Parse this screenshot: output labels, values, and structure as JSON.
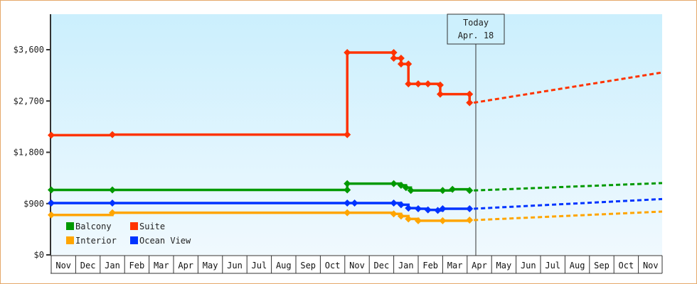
{
  "chart_data": {
    "type": "line",
    "title": "",
    "xlabel": "",
    "ylabel": "",
    "ylim": [
      0,
      4300
    ],
    "y_ticks": [
      {
        "label": "$0",
        "value": 0
      },
      {
        "label": "$900",
        "value": 900
      },
      {
        "label": "$1,800",
        "value": 1800
      },
      {
        "label": "$2,700",
        "value": 2700
      },
      {
        "label": "$3,600",
        "value": 3600
      }
    ],
    "x_tick_labels": [
      "Nov",
      "Dec",
      "Jan",
      "Feb",
      "Mar",
      "Apr",
      "May",
      "Jun",
      "Jul",
      "Aug",
      "Sep",
      "Oct",
      "Nov",
      "Dec",
      "Jan",
      "Feb",
      "Mar",
      "Apr",
      "May",
      "Jun",
      "Jul",
      "Aug",
      "Sep",
      "Oct",
      "Nov"
    ],
    "grid": false,
    "legend_position": "lower-left inside",
    "today_marker": {
      "line1": "Today",
      "line2": "Apr. 18",
      "month_index": 17.1
    },
    "series": [
      {
        "name": "Balcony",
        "color": "#009900",
        "style": "step",
        "points": [
          [
            0,
            1140
          ],
          [
            2.5,
            1140
          ],
          [
            12.1,
            1140
          ],
          [
            12.1,
            1250
          ],
          [
            14.0,
            1250
          ],
          [
            14.3,
            1220
          ],
          [
            14.5,
            1180
          ],
          [
            14.7,
            1130
          ],
          [
            16.0,
            1130
          ],
          [
            16.4,
            1150
          ],
          [
            17.1,
            1130
          ]
        ],
        "projection": [
          [
            17.1,
            1130
          ],
          [
            25.9,
            1260
          ]
        ]
      },
      {
        "name": "Suite",
        "color": "#ff3300",
        "style": "step",
        "points": [
          [
            0,
            2100
          ],
          [
            2.5,
            2110
          ],
          [
            12.1,
            2110
          ],
          [
            12.1,
            3550
          ],
          [
            14.0,
            3550
          ],
          [
            14.0,
            3450
          ],
          [
            14.3,
            3450
          ],
          [
            14.3,
            3350
          ],
          [
            14.6,
            3350
          ],
          [
            14.6,
            3000
          ],
          [
            15.0,
            3000
          ],
          [
            15.4,
            3000
          ],
          [
            15.9,
            2980
          ],
          [
            15.9,
            2820
          ],
          [
            17.1,
            2820
          ],
          [
            17.1,
            2670
          ]
        ],
        "projection": [
          [
            17.1,
            2670
          ],
          [
            25.9,
            3200
          ]
        ]
      },
      {
        "name": "Interior",
        "color": "#ffa500",
        "style": "step",
        "points": [
          [
            0,
            700
          ],
          [
            2.5,
            740
          ],
          [
            12.1,
            740
          ],
          [
            14.0,
            720
          ],
          [
            14.3,
            680
          ],
          [
            14.6,
            630
          ],
          [
            15.0,
            600
          ],
          [
            16.0,
            600
          ],
          [
            17.1,
            610
          ]
        ],
        "projection": [
          [
            17.1,
            610
          ],
          [
            25.9,
            760
          ]
        ]
      },
      {
        "name": "Ocean View",
        "color": "#0033ff",
        "style": "step",
        "points": [
          [
            0,
            910
          ],
          [
            2.5,
            910
          ],
          [
            12.1,
            910
          ],
          [
            12.4,
            910
          ],
          [
            14.0,
            910
          ],
          [
            14.3,
            880
          ],
          [
            14.6,
            820
          ],
          [
            15.0,
            810
          ],
          [
            15.4,
            790
          ],
          [
            15.8,
            780
          ],
          [
            16.0,
            810
          ],
          [
            17.1,
            810
          ]
        ],
        "projection": [
          [
            17.1,
            810
          ],
          [
            25.9,
            980
          ]
        ]
      }
    ]
  },
  "legend": {
    "items": [
      {
        "label": "Balcony",
        "color": "#009900"
      },
      {
        "label": "Suite",
        "color": "#ff3300"
      },
      {
        "label": "Interior",
        "color": "#ffa500"
      },
      {
        "label": "Ocean View",
        "color": "#0033ff"
      }
    ]
  },
  "today": {
    "line1": "Today",
    "line2": "Apr. 18"
  },
  "y_labels": [
    "$0",
    "$900",
    "$1,800",
    "$2,700",
    "$3,600"
  ],
  "months": [
    "Nov",
    "Dec",
    "Jan",
    "Feb",
    "Mar",
    "Apr",
    "May",
    "Jun",
    "Jul",
    "Aug",
    "Sep",
    "Oct",
    "Nov",
    "Dec",
    "Jan",
    "Feb",
    "Mar",
    "Apr",
    "May",
    "Jun",
    "Jul",
    "Aug",
    "Sep",
    "Oct",
    "Nov"
  ]
}
